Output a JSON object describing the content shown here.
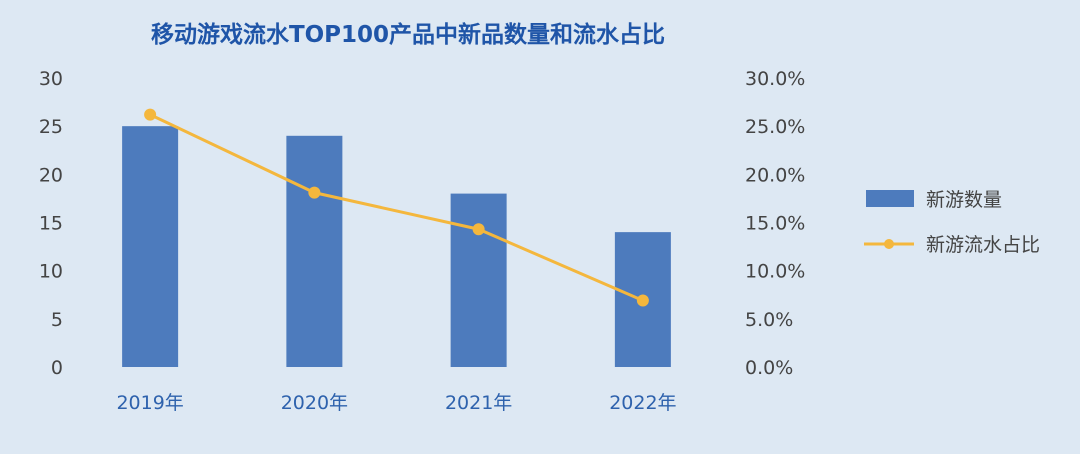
{
  "colors": {
    "background": "#dde8f3",
    "title": "#1f55a8",
    "axis_text": "#444444",
    "category_text": "#2e62ad",
    "bar": "#4d7bbd",
    "line": "#f4b73d"
  },
  "chart_data": {
    "type": "bar",
    "title": "移动游戏流水TOP100产品中新品数量和流水占比",
    "categories": [
      "2019年",
      "2020年",
      "2021年",
      "2022年"
    ],
    "series": [
      {
        "name": "新游数量",
        "type": "bar",
        "axis": "left",
        "values": [
          25,
          24,
          18,
          14
        ]
      },
      {
        "name": "新游流水占比",
        "type": "line",
        "axis": "right",
        "values": [
          26.2,
          18.1,
          14.3,
          6.9
        ]
      }
    ],
    "left_axis": {
      "ylim": [
        0,
        30
      ],
      "ticks": [
        "0",
        "5",
        "10",
        "15",
        "20",
        "25",
        "30"
      ]
    },
    "right_axis": {
      "ylim": [
        0,
        30
      ],
      "unit": "%",
      "ticks": [
        "0.0%",
        "5.0%",
        "10.0%",
        "15.0%",
        "20.0%",
        "25.0%",
        "30.0%"
      ]
    },
    "grid": false,
    "legend_position": "right"
  }
}
